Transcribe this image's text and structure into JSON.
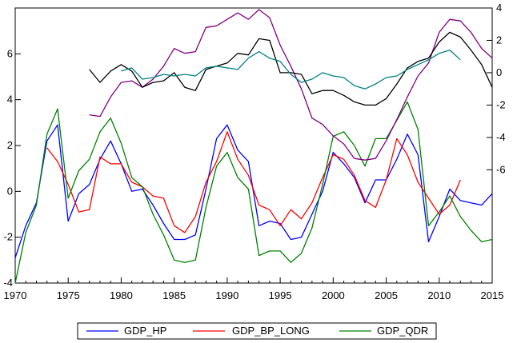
{
  "chart_data": {
    "type": "line",
    "title": "",
    "xlabel": "",
    "ylabel": "",
    "x_range": [
      1970,
      2015
    ],
    "x_ticks": [
      "1970",
      "1975",
      "1980",
      "1985",
      "1990",
      "1995",
      "2000",
      "2005",
      "2010",
      "2015"
    ],
    "left_axis": {
      "ylim": [
        -4,
        8
      ],
      "ticks": [
        "-4",
        "-2",
        "0",
        "2",
        "4",
        "6"
      ],
      "tick_values": [
        -4,
        -2,
        0,
        2,
        4,
        6
      ]
    },
    "right_axis": {
      "ylim": [
        -13,
        4
      ],
      "ticks": [
        "4",
        "2",
        "0",
        "-2",
        "-4",
        "-6"
      ],
      "tick_values": [
        4,
        2,
        0,
        -2,
        -4,
        -6
      ]
    },
    "legend_position": "bottom",
    "series": [
      {
        "name": "GDP_HP",
        "color": "#0000ff",
        "axis": "left",
        "in_legend": true,
        "x": [
          1970,
          1971,
          1972,
          1973,
          1974,
          1975,
          1976,
          1977,
          1978,
          1979,
          1980,
          1981,
          1982,
          1983,
          1984,
          1985,
          1986,
          1987,
          1988,
          1989,
          1990,
          1991,
          1992,
          1993,
          1994,
          1995,
          1996,
          1997,
          1998,
          1999,
          2000,
          2001,
          2002,
          2003,
          2004,
          2005,
          2006,
          2007,
          2008,
          2009,
          2010,
          2011,
          2012,
          2013,
          2014,
          2015
        ],
        "y": [
          -2.9,
          -1.5,
          -0.5,
          2.2,
          2.9,
          -1.3,
          -0.1,
          0.3,
          1.4,
          2.2,
          1.2,
          0.0,
          0.1,
          -0.6,
          -1.4,
          -2.1,
          -2.1,
          -1.9,
          0.1,
          2.3,
          2.9,
          1.8,
          1.3,
          -1.5,
          -1.3,
          -1.4,
          -2.1,
          -2.0,
          -1.0,
          0.0,
          1.7,
          1.2,
          0.6,
          -0.5,
          0.5,
          0.5,
          1.4,
          2.5,
          1.6,
          -2.2,
          -1.1,
          0.1,
          -0.4,
          -0.5,
          -0.6,
          -0.1
        ]
      },
      {
        "name": "GDP_BP_LONG",
        "color": "#ff0000",
        "axis": "left",
        "in_legend": true,
        "x": [
          1973,
          1974,
          1975,
          1976,
          1977,
          1978,
          1979,
          1980,
          1981,
          1982,
          1983,
          1984,
          1985,
          1986,
          1987,
          1988,
          1989,
          1990,
          1991,
          1992,
          1993,
          1994,
          1995,
          1996,
          1997,
          1998,
          1999,
          2000,
          2001,
          2002,
          2003,
          2004,
          2005,
          2006,
          2007,
          2008,
          2009,
          2010,
          2011,
          2012
        ],
        "y": [
          1.9,
          1.3,
          0.3,
          -0.9,
          -0.8,
          1.5,
          1.2,
          1.2,
          0.4,
          0.2,
          -0.2,
          -0.3,
          -1.5,
          -1.8,
          -1.1,
          0.4,
          1.3,
          2.6,
          1.4,
          0.7,
          -0.6,
          -0.8,
          -1.5,
          -0.8,
          -1.2,
          -0.5,
          0.6,
          1.6,
          1.4,
          0.7,
          -0.4,
          -0.7,
          0.5,
          2.3,
          1.6,
          0.4,
          -0.3,
          -1.0,
          -0.6,
          0.5
        ]
      },
      {
        "name": "GDP_QDR",
        "color": "#008000",
        "axis": "left",
        "in_legend": true,
        "x": [
          1970,
          1971,
          1972,
          1973,
          1974,
          1975,
          1976,
          1977,
          1978,
          1979,
          1980,
          1981,
          1982,
          1983,
          1984,
          1985,
          1986,
          1987,
          1988,
          1989,
          1990,
          1991,
          1992,
          1993,
          1994,
          1995,
          1996,
          1997,
          1998,
          1999,
          2000,
          2001,
          2002,
          2003,
          2004,
          2005,
          2006,
          2007,
          2008,
          2009,
          2010,
          2011,
          2012,
          2013,
          2014,
          2015
        ],
        "y": [
          -4.0,
          -1.8,
          -0.6,
          2.5,
          3.6,
          -0.3,
          0.9,
          1.4,
          2.6,
          3.2,
          2.1,
          0.6,
          0.2,
          -1.0,
          -1.9,
          -3.0,
          -3.1,
          -3.0,
          -0.7,
          1.1,
          1.7,
          0.6,
          0.1,
          -2.8,
          -2.6,
          -2.6,
          -3.1,
          -2.7,
          -1.6,
          0.3,
          2.4,
          2.6,
          2.0,
          1.1,
          2.3,
          2.3,
          3.1,
          3.9,
          2.7,
          -1.5,
          -0.9,
          -0.2,
          -1.1,
          -1.7,
          -2.2,
          -2.1
        ]
      },
      {
        "name": "",
        "color": "#800080",
        "axis": "right",
        "in_legend": false,
        "x": [
          1977,
          1978,
          1979,
          1980,
          1981,
          1982,
          1983,
          1984,
          1985,
          1986,
          1987,
          1988,
          1989,
          1990,
          1991,
          1992,
          1993,
          1994,
          1995,
          1996,
          1997,
          1998,
          1999,
          2000,
          2001,
          2002,
          2003,
          2004,
          2005,
          2006,
          2007,
          2008,
          2009,
          2010,
          2011,
          2012,
          2013,
          2014,
          2015
        ],
        "y": [
          -2.6,
          -2.7,
          -1.5,
          -0.6,
          -0.5,
          -0.9,
          -0.4,
          0.4,
          1.5,
          1.2,
          1.3,
          2.8,
          2.9,
          3.3,
          3.7,
          3.3,
          3.9,
          3.4,
          1.7,
          0.4,
          -1.0,
          -2.8,
          -3.2,
          -3.9,
          -4.4,
          -5.3,
          -5.4,
          -5.3,
          -4.2,
          -2.9,
          -1.5,
          -0.2,
          0.6,
          2.5,
          3.3,
          3.2,
          2.5,
          1.5,
          0.9
        ]
      },
      {
        "name": "",
        "color": "#000000",
        "axis": "right",
        "in_legend": false,
        "x": [
          1977,
          1978,
          1979,
          1980,
          1981,
          1982,
          1983,
          1984,
          1985,
          1986,
          1987,
          1988,
          1989,
          1990,
          1991,
          1992,
          1993,
          1994,
          1995,
          1996,
          1997,
          1998,
          1999,
          2000,
          2001,
          2002,
          2003,
          2004,
          2005,
          2006,
          2007,
          2008,
          2009,
          2010,
          2011,
          2012,
          2013,
          2014,
          2015
        ],
        "y": [
          0.2,
          -0.6,
          0.1,
          0.5,
          0.1,
          -0.9,
          -0.6,
          -0.5,
          0.0,
          -0.9,
          -1.1,
          0.2,
          0.4,
          0.6,
          1.2,
          1.1,
          2.1,
          2.0,
          0.0,
          0.0,
          -0.1,
          -1.3,
          -1.1,
          -1.1,
          -1.4,
          -1.8,
          -2.0,
          -2.0,
          -1.6,
          -0.7,
          0.3,
          0.7,
          0.9,
          1.9,
          2.5,
          2.2,
          1.4,
          0.5,
          -0.9
        ]
      },
      {
        "name": "",
        "color": "#008080",
        "axis": "right",
        "in_legend": false,
        "x": [
          1980,
          1981,
          1982,
          1983,
          1984,
          1985,
          1986,
          1987,
          1988,
          1989,
          1990,
          1991,
          1992,
          1993,
          1994,
          1995,
          1996,
          1997,
          1998,
          1999,
          2000,
          2001,
          2002,
          2003,
          2004,
          2005,
          2006,
          2007,
          2008,
          2009,
          2010,
          2011,
          2012
        ],
        "y": [
          0.1,
          0.3,
          -0.4,
          -0.3,
          -0.1,
          -0.2,
          -0.1,
          -0.2,
          0.3,
          0.4,
          0.3,
          0.2,
          0.9,
          1.3,
          0.9,
          0.7,
          -0.1,
          -0.6,
          -0.4,
          0.0,
          -0.2,
          -0.3,
          -0.8,
          -1.0,
          -0.7,
          -0.3,
          -0.2,
          0.2,
          0.5,
          0.8,
          1.2,
          1.4,
          0.8
        ]
      }
    ]
  }
}
